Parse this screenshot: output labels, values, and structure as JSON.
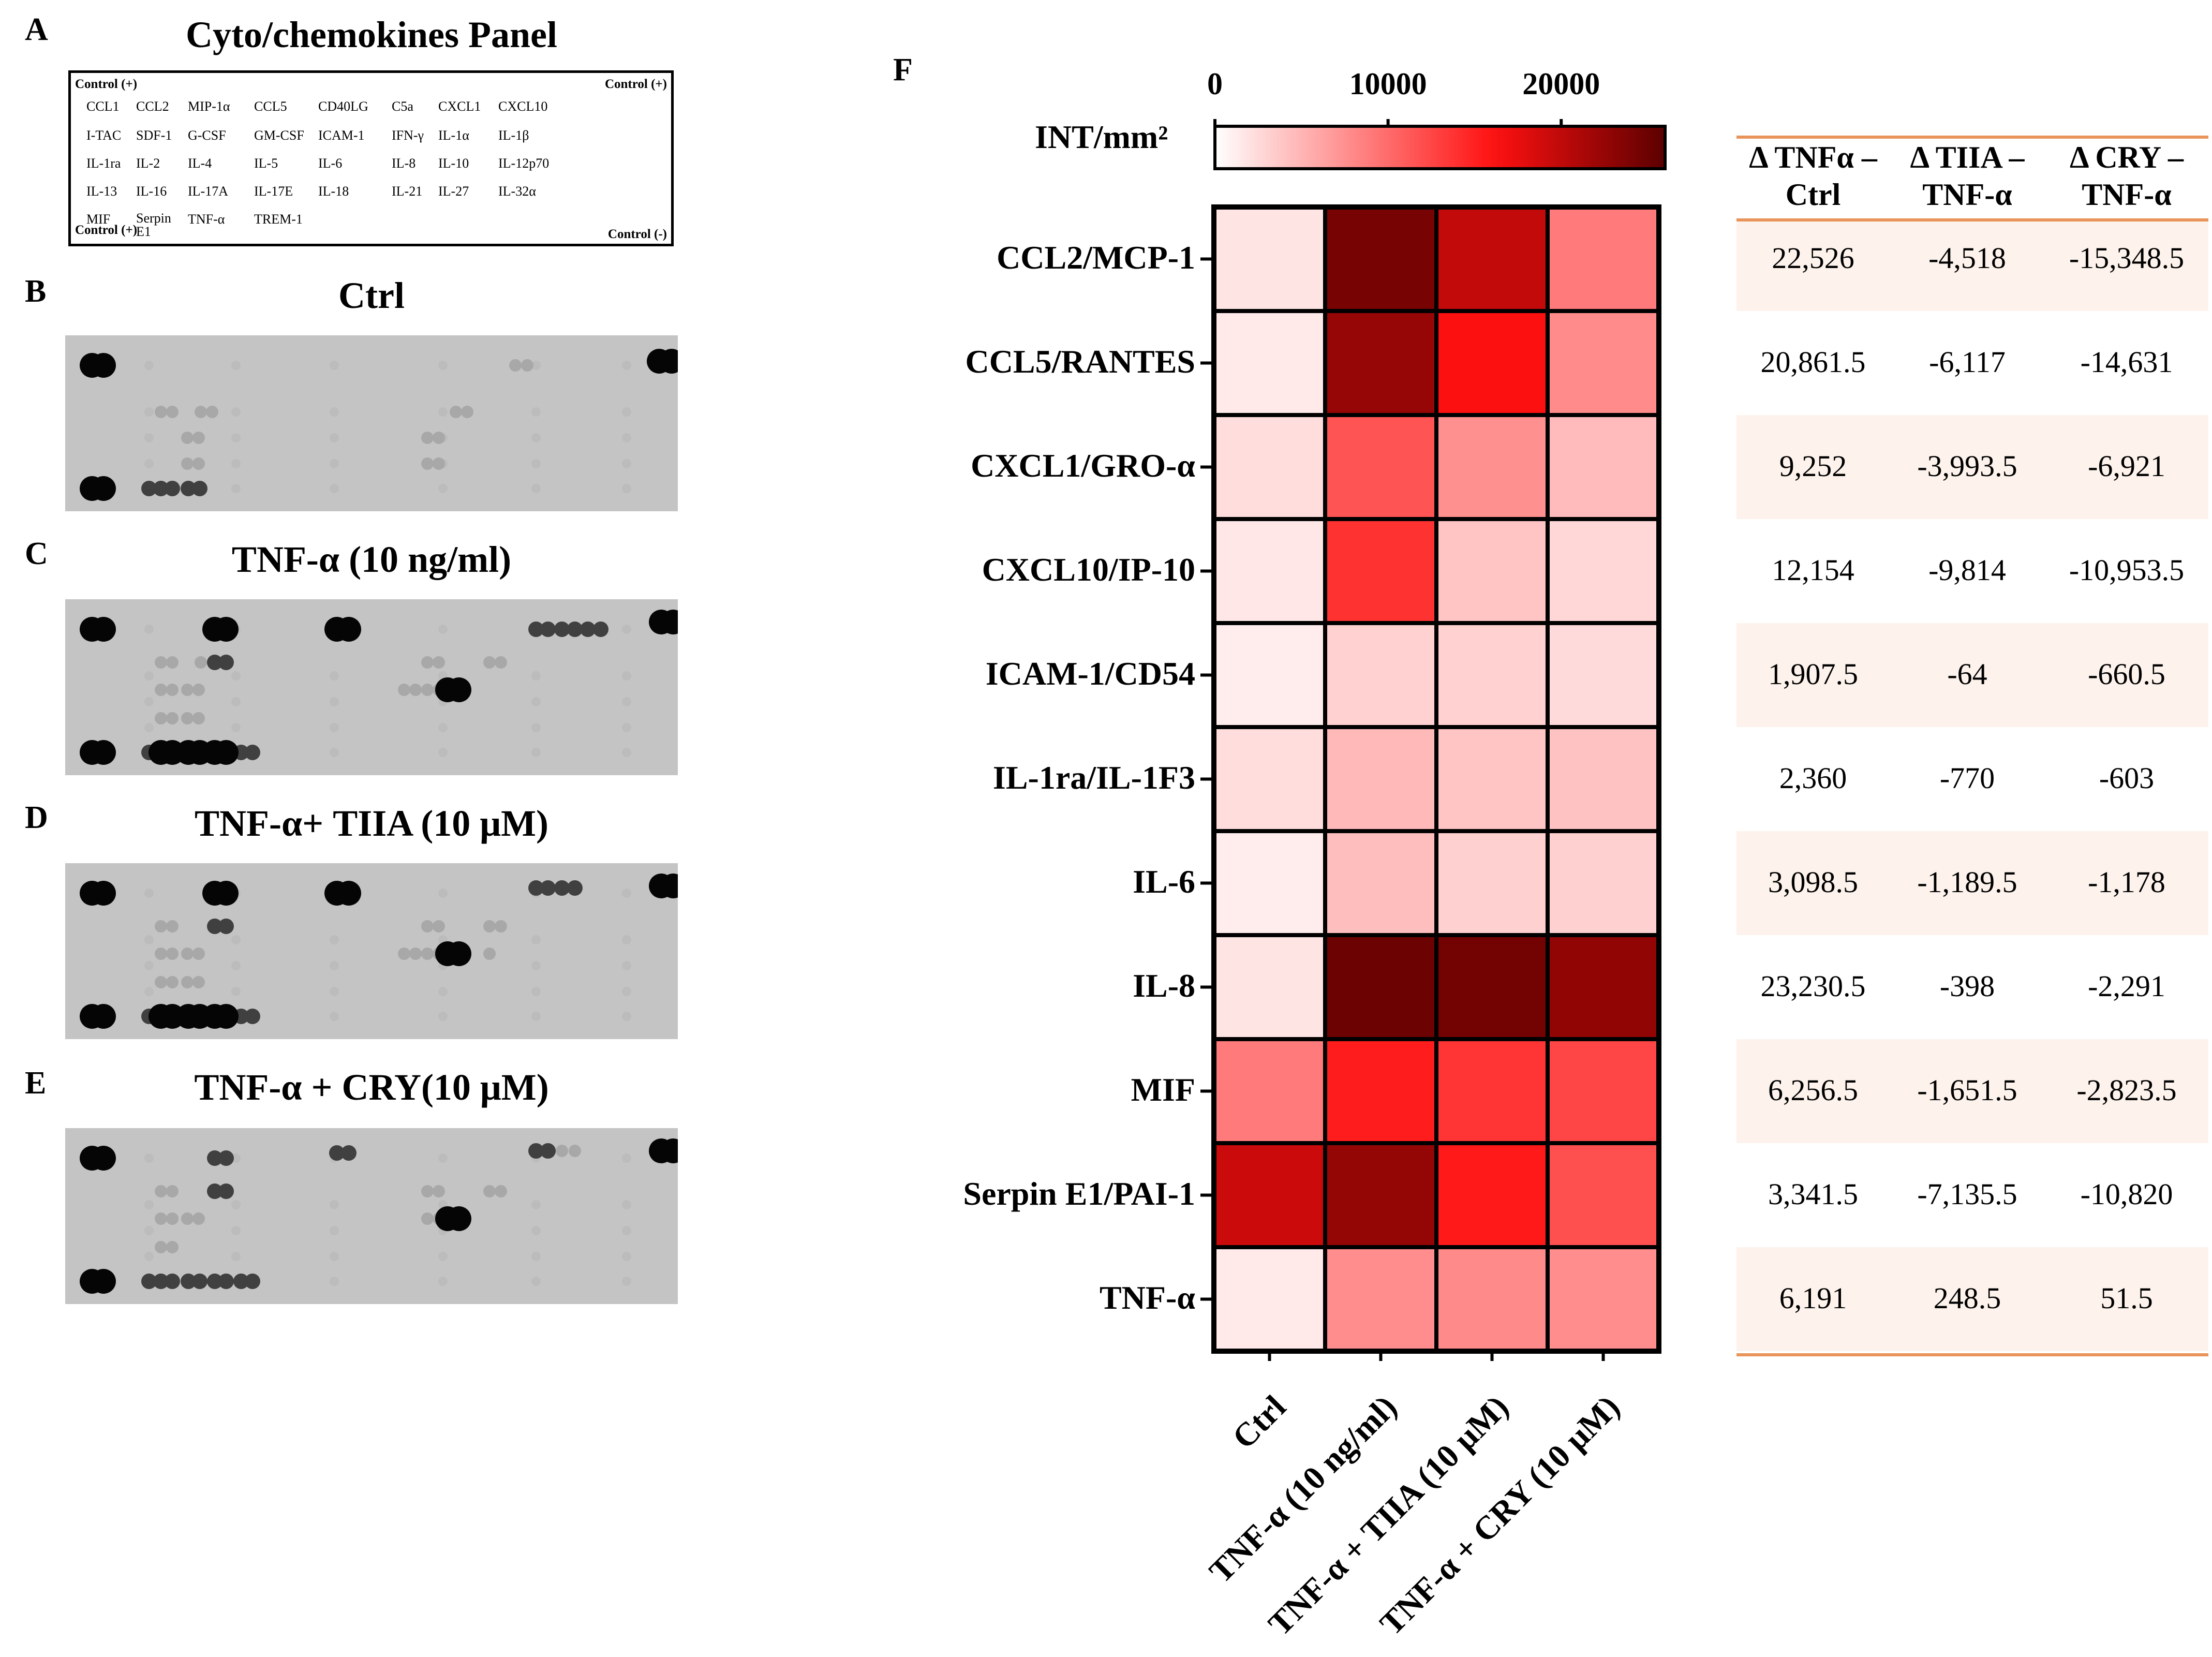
{
  "panel_labels": {
    "a": "A",
    "b": "B",
    "c": "C",
    "d": "D",
    "e": "E",
    "f": "F"
  },
  "panel_a": {
    "title": "Cyto/chemokines Panel",
    "corner_tl": "Control (+)",
    "corner_tr": "Control (+)",
    "corner_bl": "Control (+)",
    "corner_br": "Control (-)",
    "rows": [
      [
        "CCL1",
        "CCL2",
        "MIP-1α",
        "CCL5",
        "CD40LG",
        "C5a",
        "CXCL1",
        "CXCL10"
      ],
      [
        "I-TAC",
        "SDF-1",
        "G-CSF",
        "GM-CSF",
        "ICAM-1",
        "IFN-γ",
        "IL-1α",
        "IL-1β"
      ],
      [
        "IL-1ra",
        "IL-2",
        "IL-4",
        "IL-5",
        "IL-6",
        "IL-8",
        "IL-10",
        "IL-12p70"
      ],
      [
        "IL-13",
        "IL-16",
        "IL-17A",
        "IL-17E",
        "IL-18",
        "IL-21",
        "IL-27",
        "IL-32α"
      ],
      [
        "MIF",
        "Serpin E1",
        "TNF-α",
        "TREM-1",
        "",
        "",
        "",
        ""
      ]
    ]
  },
  "panel_b_title": "Ctrl",
  "panel_c_title": "TNF-α (10 ng/ml)",
  "panel_d_title": "TNF-α+ TIIA (10 μM)",
  "panel_e_title": "TNF-α + CRY(10 μM)",
  "chart_data": {
    "type": "heatmap",
    "title": "",
    "colorbar_label": "INT/mm²",
    "colorbar_ticks": [
      0,
      10000,
      20000
    ],
    "colorbar_tick_labels": [
      "0",
      "10000",
      "20000"
    ],
    "colorbar_range": [
      0,
      26000
    ],
    "color_low": "#ffffff",
    "color_mid": "#ff1010",
    "color_high": "#5c0000",
    "rows": [
      "CCL2/MCP-1",
      "CCL5/RANTES",
      "CXCL1/GRO-α",
      "CXCL10/IP-10",
      "ICAM-1/CD54",
      "IL-1ra/IL-1F3",
      "IL-6",
      "IL-8",
      "MIF",
      "Serpin E1/PAI-1",
      "TNF-α"
    ],
    "columns": [
      "Ctrl",
      "TNF-α (10 ng/ml)",
      "TNF-α + TIIA (10 μM)",
      "TNF-α + CRY (10 μM)"
    ],
    "values": [
      [
        1800,
        24300,
        19800,
        9000
      ],
      [
        1500,
        22400,
        16300,
        7800
      ],
      [
        2300,
        11500,
        7500,
        4600
      ],
      [
        1600,
        13800,
        4000,
        2700
      ],
      [
        1200,
        3100,
        3100,
        2500
      ],
      [
        2300,
        4700,
        3900,
        4100
      ],
      [
        1300,
        4400,
        3200,
        3200
      ],
      [
        1800,
        25000,
        24600,
        22700
      ],
      [
        9000,
        15300,
        13600,
        12500
      ],
      [
        19300,
        22600,
        15500,
        11800
      ],
      [
        1500,
        7700,
        7900,
        7700
      ]
    ],
    "table": {
      "headers": [
        [
          "Δ TNFα –",
          "Ctrl"
        ],
        [
          "Δ TIIA –",
          "TNF-α"
        ],
        [
          "Δ CRY –",
          "TNF-α"
        ]
      ],
      "rows": [
        [
          "22,526",
          "-4,518",
          "-15,348.5"
        ],
        [
          "20,861.5",
          "-6,117",
          "-14,631"
        ],
        [
          "9,252",
          "-3,993.5",
          "-6,921"
        ],
        [
          "12,154",
          "-9,814",
          "-10,953.5"
        ],
        [
          "1,907.5",
          "-64",
          "-660.5"
        ],
        [
          "2,360",
          "-770",
          "-603"
        ],
        [
          "3,098.5",
          "-1,189.5",
          "-1,178"
        ],
        [
          "23,230.5",
          "-398",
          "-2,291"
        ],
        [
          "6,256.5",
          "-1,651.5",
          "-2,823.5"
        ],
        [
          "3,341.5",
          "-7,135.5",
          "-10,820"
        ],
        [
          "6,191",
          "248.5",
          "51.5"
        ]
      ],
      "stripe_color": "#fdf3ec",
      "rule_color": "#e8945a"
    }
  }
}
